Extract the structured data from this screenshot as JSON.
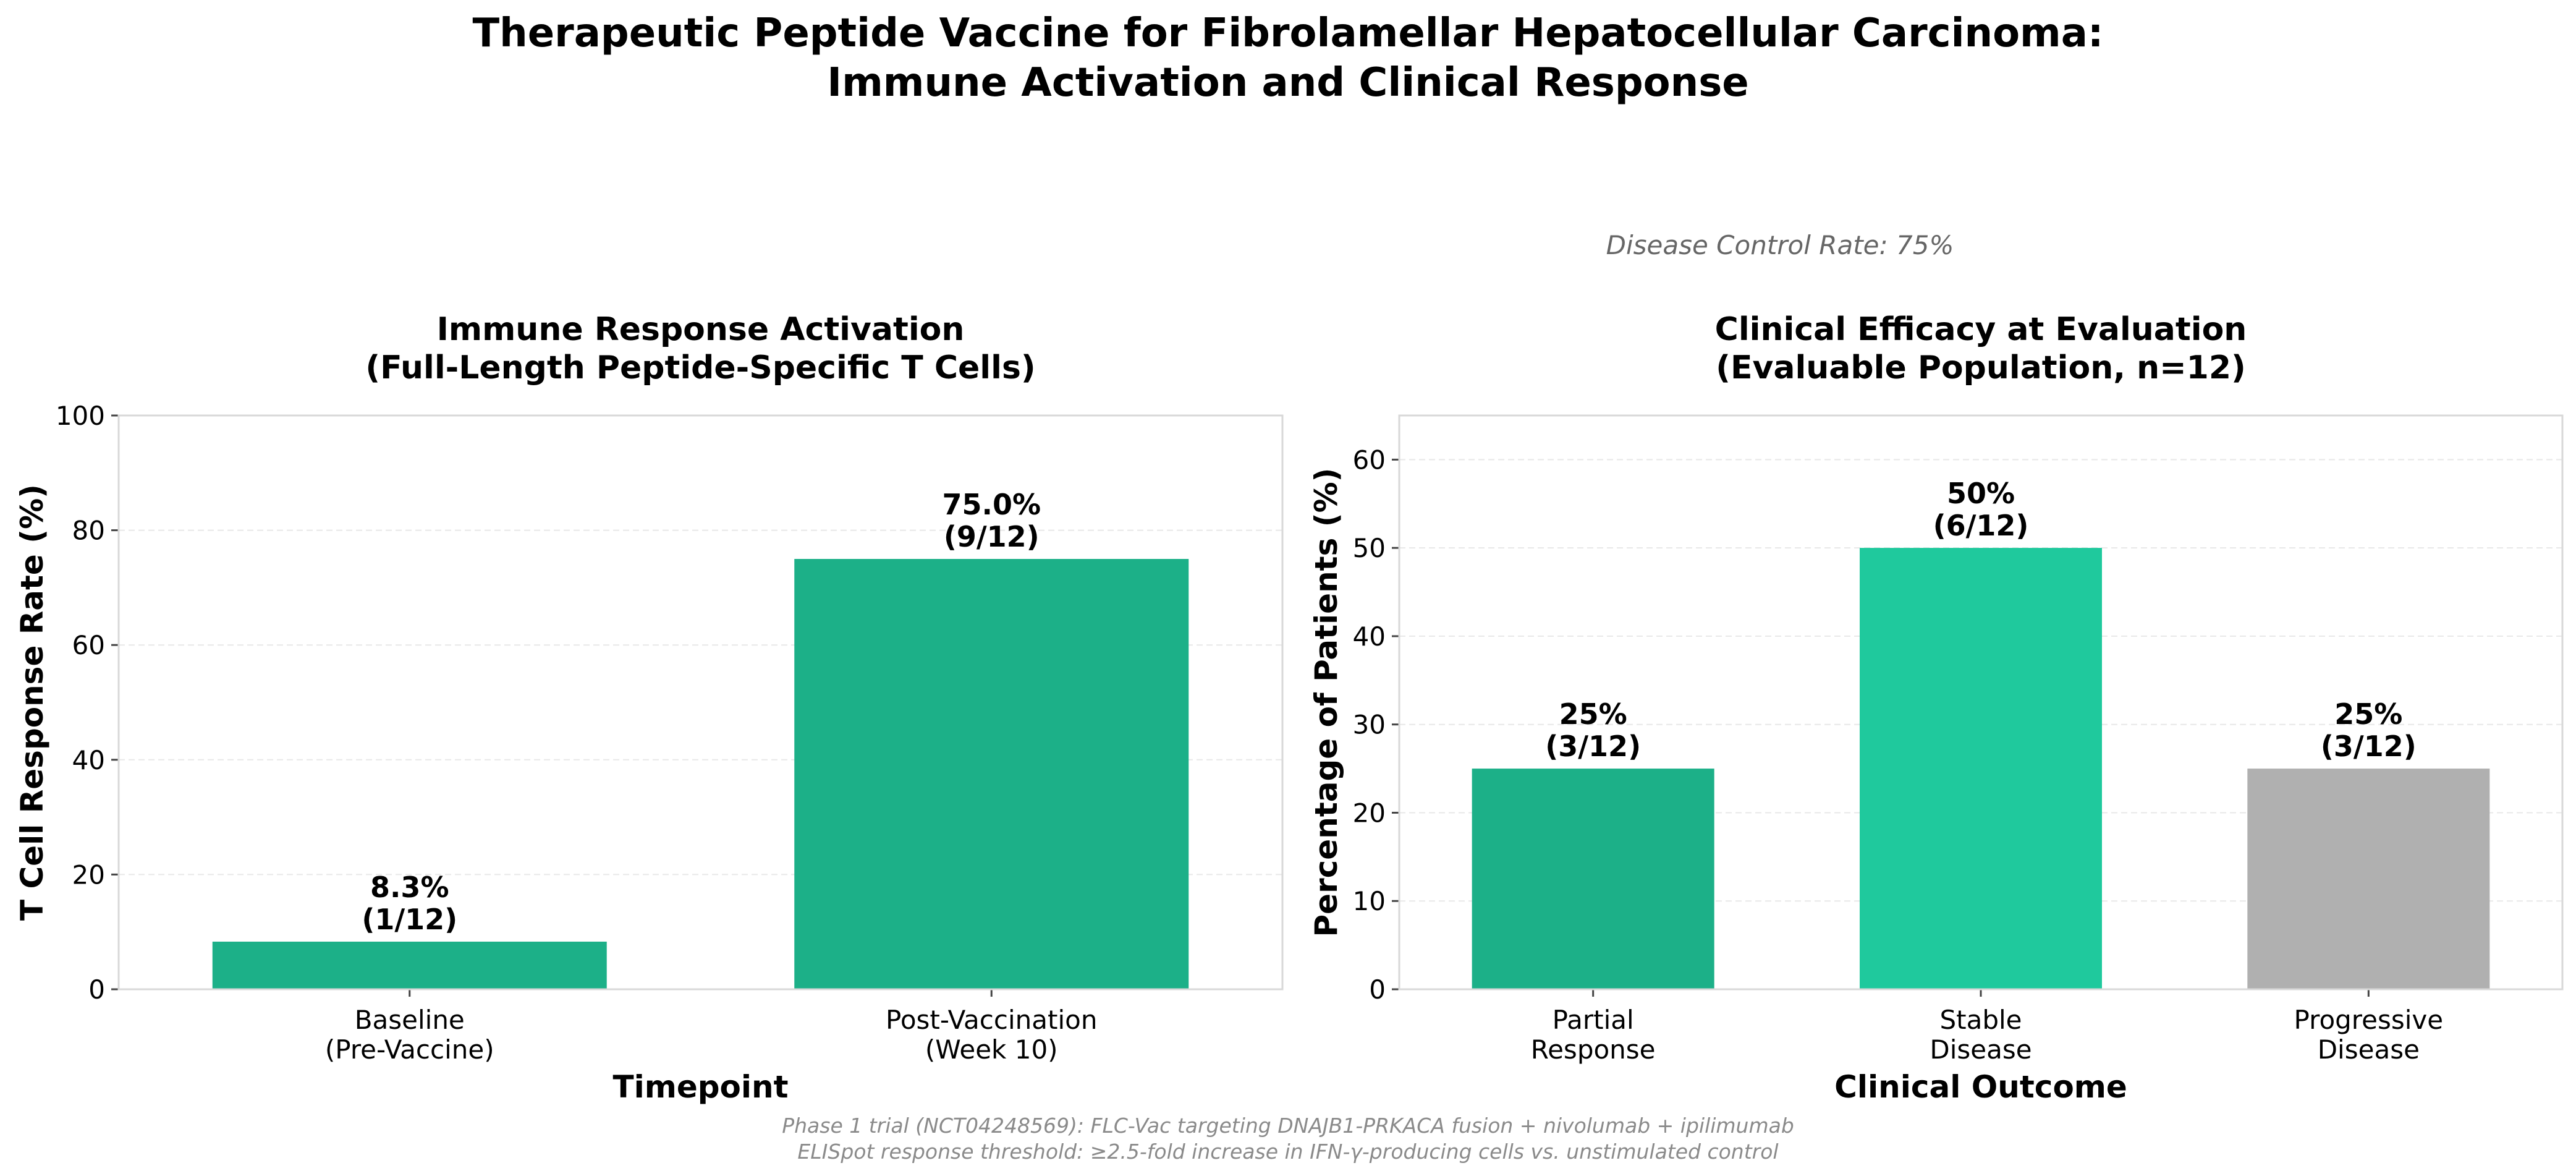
{
  "suptitle": {
    "line1": "Therapeutic Peptide Vaccine for Fibrolamellar Hepatocellular Carcinoma:",
    "line2": "Immune Activation and Clinical Response"
  },
  "disease_control_note": "Disease Control Rate: 75%",
  "footnote": {
    "line1": "Phase 1 trial (NCT04248569): FLC-Vac targeting DNAJB1-PRKACA fusion + nivolumab + ipilimumab",
    "line2": "ELISpot response threshold: ≥2.5-fold increase in IFN-γ-producing cells vs. unstimulated control"
  },
  "colors": {
    "green": "#1cb088",
    "teal": "#1fc99d",
    "gray": "#b0b0b0"
  },
  "chart_data": [
    {
      "type": "bar",
      "title": [
        "Immune Response Activation",
        "(Full-Length Peptide-Specific T Cells)"
      ],
      "xlabel": "Timepoint",
      "ylabel": "T Cell Response Rate (%)",
      "ylim": [
        0,
        100
      ],
      "yticks": [
        0,
        20,
        40,
        60,
        80,
        100
      ],
      "categories": [
        [
          "Baseline",
          "(Pre-Vaccine)"
        ],
        [
          "Post-Vaccination",
          "(Week 10)"
        ]
      ],
      "values": [
        8.3,
        75.0
      ],
      "labels": [
        [
          "8.3%",
          "(1/12)"
        ],
        [
          "75.0%",
          "(9/12)"
        ]
      ],
      "colors": [
        "#1cb088",
        "#1cb088"
      ],
      "grid": true
    },
    {
      "type": "bar",
      "title": [
        "Clinical Efficacy at Evaluation",
        "(Evaluable Population, n=12)"
      ],
      "xlabel": "Clinical Outcome",
      "ylabel": "Percentage of Patients (%)",
      "ylim": [
        0,
        65
      ],
      "yticks": [
        0,
        10,
        20,
        30,
        40,
        50,
        60
      ],
      "categories": [
        [
          "Partial",
          "Response"
        ],
        [
          "Stable",
          "Disease"
        ],
        [
          "Progressive",
          "Disease"
        ]
      ],
      "values": [
        25,
        50,
        25
      ],
      "labels": [
        [
          "25%",
          "(3/12)"
        ],
        [
          "50%",
          "(6/12)"
        ],
        [
          "25%",
          "(3/12)"
        ]
      ],
      "colors": [
        "#1cb088",
        "#1fc99d",
        "#b0b0b0"
      ],
      "grid": true
    }
  ]
}
